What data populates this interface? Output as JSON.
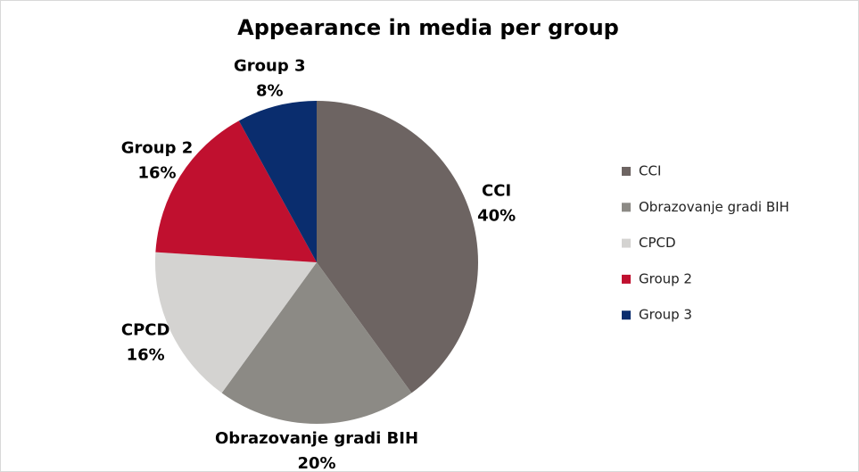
{
  "chart_data": {
    "type": "pie",
    "title": "Appearance in media per group",
    "categories": [
      "CCI",
      "Obrazovanje gradi BIH",
      "CPCD",
      "Group 2",
      "Group 3"
    ],
    "values": [
      40,
      20,
      16,
      16,
      8
    ],
    "value_labels": [
      "40%",
      "20%",
      "16%",
      "16%",
      "8%"
    ],
    "colors": [
      "#6d6462",
      "#8c8a85",
      "#d4d3d1",
      "#c0102f",
      "#0a2d6e"
    ],
    "legend": "right"
  }
}
